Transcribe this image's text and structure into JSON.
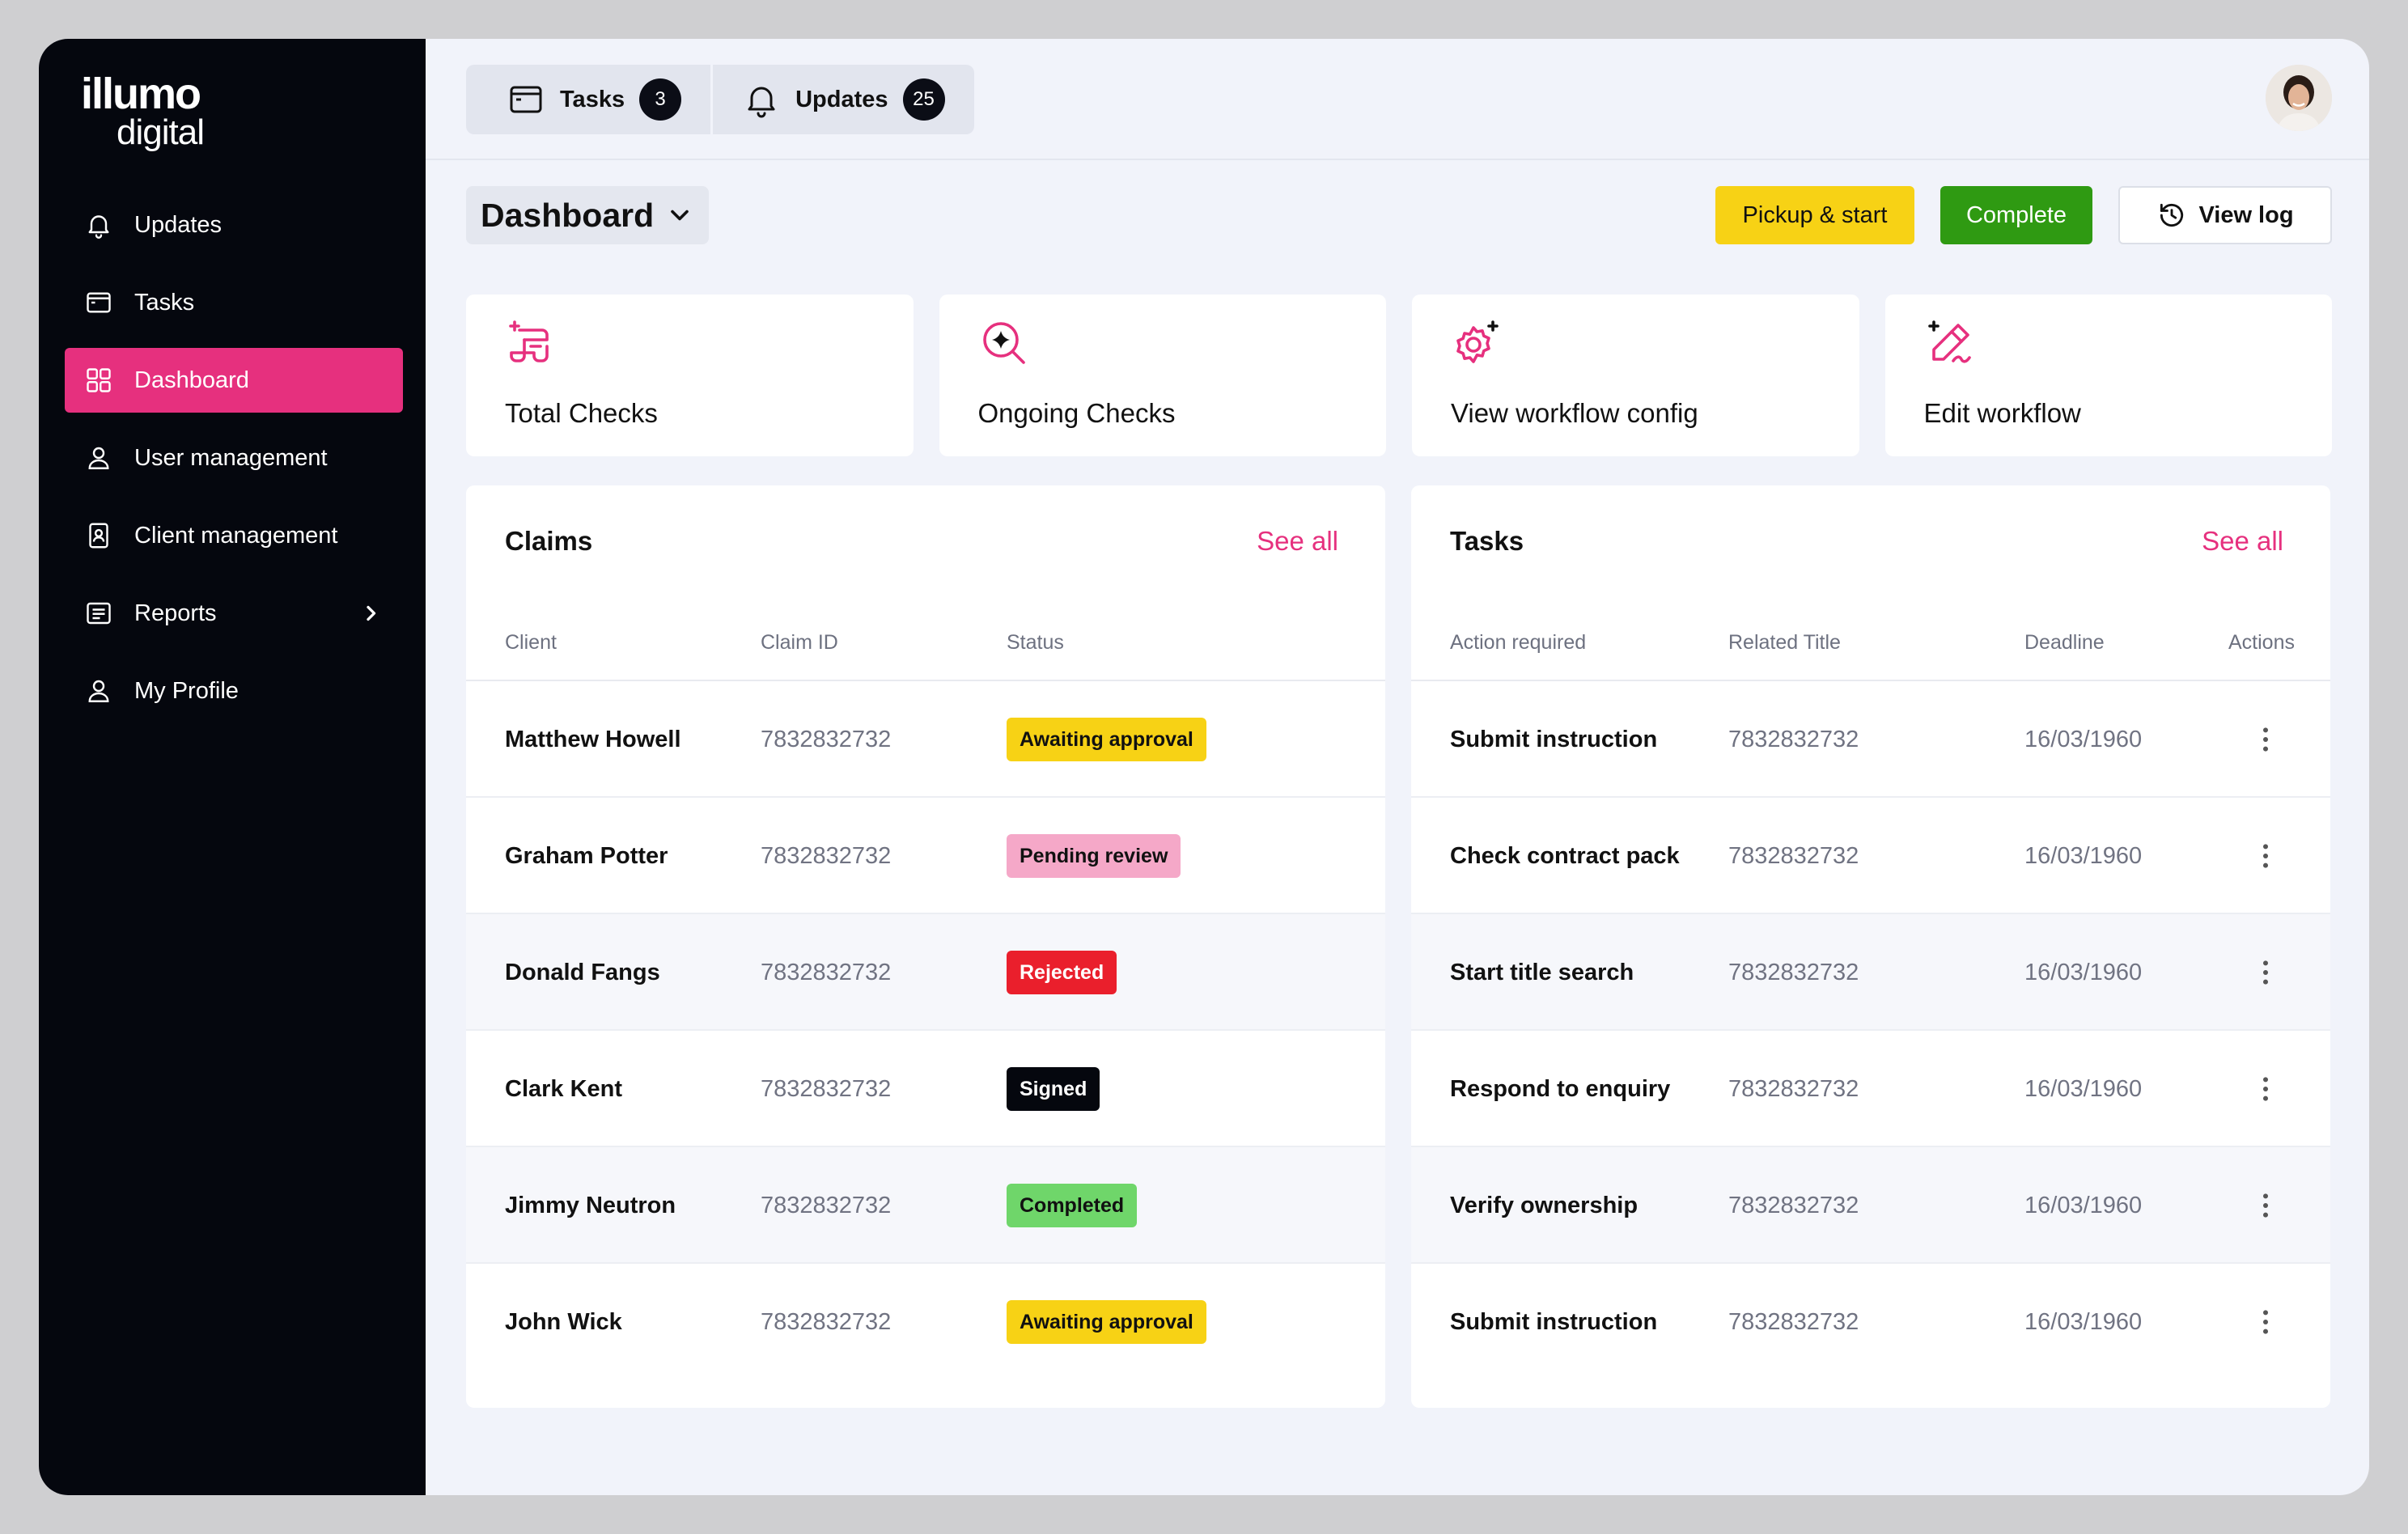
{
  "brand": {
    "line1": "illumo",
    "line2": "digital"
  },
  "sidebar": {
    "items": [
      {
        "label": "Updates",
        "icon": "bell-icon"
      },
      {
        "label": "Tasks",
        "icon": "window-icon"
      },
      {
        "label": "Dashboard",
        "icon": "grid-icon",
        "active": true
      },
      {
        "label": "User management",
        "icon": "user-icon"
      },
      {
        "label": "Client management",
        "icon": "id-card-icon"
      },
      {
        "label": "Reports",
        "icon": "report-icon",
        "has_chevron": true
      },
      {
        "label": "My Profile",
        "icon": "user-icon"
      }
    ]
  },
  "topbar": {
    "tabs": [
      {
        "label": "Tasks",
        "count": "3",
        "icon": "window-icon"
      },
      {
        "label": "Updates",
        "count": "25",
        "icon": "bell-icon"
      }
    ]
  },
  "header": {
    "title": "Dashboard",
    "actions": {
      "pickup": "Pickup & start",
      "complete": "Complete",
      "view_log": "View log"
    }
  },
  "cards": [
    {
      "label": "Total Checks",
      "icon": "document-sparkle-icon"
    },
    {
      "label": "Ongoing Checks",
      "icon": "search-sparkle-icon"
    },
    {
      "label": "View workflow config",
      "icon": "gear-sparkle-icon"
    },
    {
      "label": "Edit workflow",
      "icon": "pen-sparkle-icon"
    }
  ],
  "claims": {
    "title": "Claims",
    "see_all": "See all",
    "columns": [
      "Client",
      "Claim ID",
      "Status"
    ],
    "rows": [
      {
        "client": "Matthew Howell",
        "claim_id": "7832832732",
        "status": "Awaiting approval",
        "status_type": "await"
      },
      {
        "client": "Graham Potter",
        "claim_id": "7832832732",
        "status": "Pending review",
        "status_type": "pending"
      },
      {
        "client": "Donald Fangs",
        "claim_id": "7832832732",
        "status": "Rejected",
        "status_type": "rejected"
      },
      {
        "client": "Clark Kent",
        "claim_id": "7832832732",
        "status": "Signed",
        "status_type": "signed"
      },
      {
        "client": "Jimmy Neutron",
        "claim_id": "7832832732",
        "status": "Completed",
        "status_type": "completed"
      },
      {
        "client": "John Wick",
        "claim_id": "7832832732",
        "status": "Awaiting approval",
        "status_type": "await"
      }
    ]
  },
  "tasks": {
    "title": "Tasks",
    "see_all": "See all",
    "columns": [
      "Action required",
      "Related Title",
      "Deadline",
      "Actions"
    ],
    "rows": [
      {
        "action": "Submit instruction",
        "related": "7832832732",
        "deadline": "16/03/1960"
      },
      {
        "action": "Check contract pack",
        "related": "7832832732",
        "deadline": "16/03/1960"
      },
      {
        "action": "Start title search",
        "related": "7832832732",
        "deadline": "16/03/1960"
      },
      {
        "action": "Respond to enquiry",
        "related": "7832832732",
        "deadline": "16/03/1960"
      },
      {
        "action": "Verify ownership",
        "related": "7832832732",
        "deadline": "16/03/1960"
      },
      {
        "action": "Submit instruction",
        "related": "7832832732",
        "deadline": "16/03/1960"
      }
    ]
  },
  "colors": {
    "accent": "#e6307e",
    "sidebar": "#05070e",
    "yellow": "#f7d215",
    "green": "#2f9a12"
  }
}
